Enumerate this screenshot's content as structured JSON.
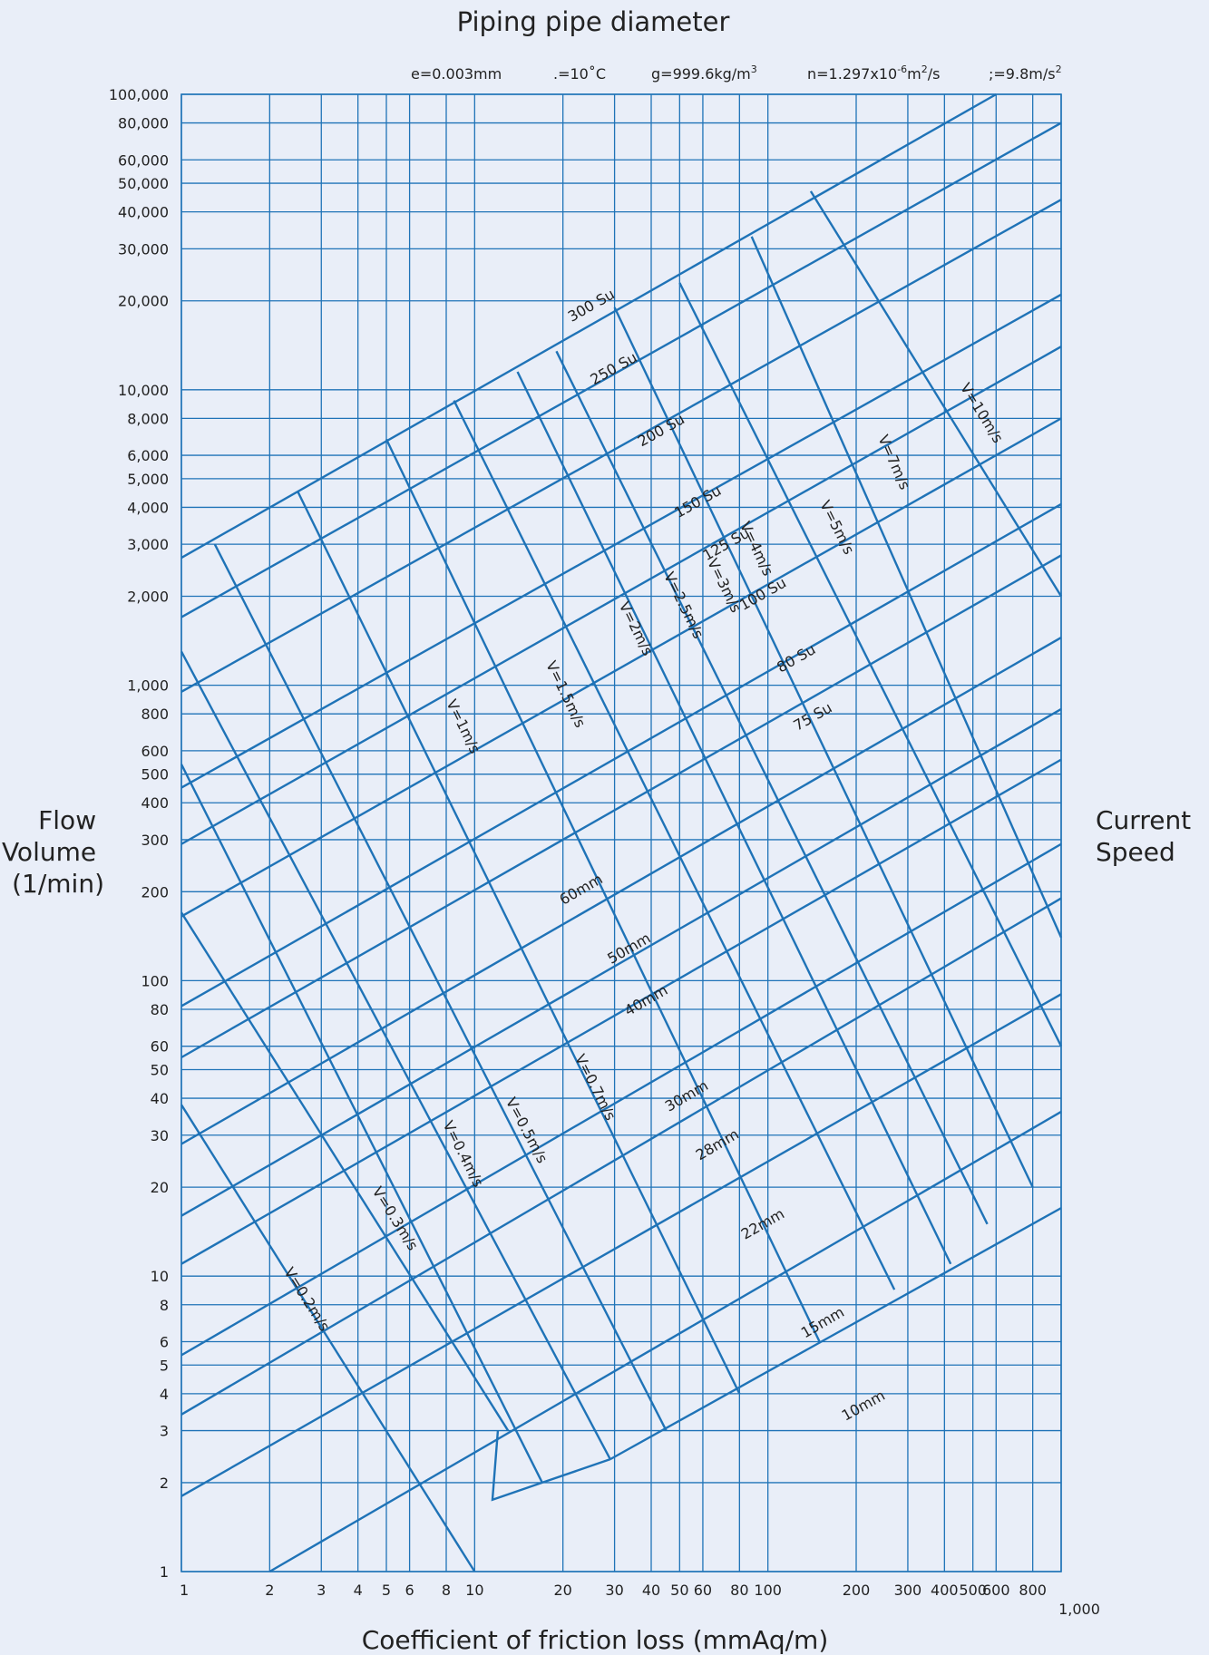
{
  "chart_data": {
    "type": "line",
    "title": "Piping pipe diameter",
    "xlabel": "Coefficient of friction loss (mmAq/m)",
    "ylabel": "Flow Volume (1/min)",
    "right_label": "Current Speed",
    "x_scale": "log",
    "y_scale": "log",
    "xlim": [
      1,
      1000
    ],
    "ylim": [
      1,
      100000
    ],
    "grid": true,
    "conditions": [
      {
        "key": "e",
        "text": "e=0.003mm"
      },
      {
        "key": "t",
        "text": ".=10˚C"
      },
      {
        "key": "g",
        "text": "g=999.6kg/m",
        "sup": "3"
      },
      {
        "key": "n",
        "text": "n=1.297x10",
        "sup": "-6",
        "text2": "m",
        "sup2": "2",
        "text3": "/s"
      },
      {
        "key": "acc",
        "text": ";=9.8m/s",
        "sup": "2"
      }
    ],
    "x_ticks": [
      {
        "v": 1,
        "label": "1"
      },
      {
        "v": 2,
        "label": "2"
      },
      {
        "v": 3,
        "label": "3"
      },
      {
        "v": 4,
        "label": "4"
      },
      {
        "v": 5,
        "label": "5"
      },
      {
        "v": 6,
        "label": "6"
      },
      {
        "v": 8,
        "label": "8"
      },
      {
        "v": 10,
        "label": "10"
      },
      {
        "v": 20,
        "label": "20"
      },
      {
        "v": 30,
        "label": "30"
      },
      {
        "v": 40,
        "label": "40"
      },
      {
        "v": 50,
        "label": "50"
      },
      {
        "v": 60,
        "label": "60"
      },
      {
        "v": 80,
        "label": "80"
      },
      {
        "v": 100,
        "label": "100"
      },
      {
        "v": 200,
        "label": "200"
      },
      {
        "v": 300,
        "label": "300"
      },
      {
        "v": 400,
        "label": "400"
      },
      {
        "v": 500,
        "label": "500"
      },
      {
        "v": 600,
        "label": "600"
      },
      {
        "v": 800,
        "label": "800"
      },
      {
        "v": 1000,
        "label": "1,000"
      }
    ],
    "y_ticks": [
      {
        "v": 1,
        "label": "1"
      },
      {
        "v": 2,
        "label": "2"
      },
      {
        "v": 3,
        "label": "3"
      },
      {
        "v": 4,
        "label": "4"
      },
      {
        "v": 5,
        "label": "5"
      },
      {
        "v": 6,
        "label": "6"
      },
      {
        "v": 8,
        "label": "8"
      },
      {
        "v": 10,
        "label": "10"
      },
      {
        "v": 20,
        "label": "20"
      },
      {
        "v": 30,
        "label": "30"
      },
      {
        "v": 40,
        "label": "40"
      },
      {
        "v": 50,
        "label": "50"
      },
      {
        "v": 60,
        "label": "60"
      },
      {
        "v": 80,
        "label": "80"
      },
      {
        "v": 100,
        "label": "100"
      },
      {
        "v": 200,
        "label": "200"
      },
      {
        "v": 300,
        "label": "300"
      },
      {
        "v": 400,
        "label": "400"
      },
      {
        "v": 500,
        "label": "500"
      },
      {
        "v": 600,
        "label": "600"
      },
      {
        "v": 800,
        "label": "800"
      },
      {
        "v": 1000,
        "label": "1,000"
      },
      {
        "v": 2000,
        "label": "2,000"
      },
      {
        "v": 3000,
        "label": "3,000"
      },
      {
        "v": 4000,
        "label": "4,000"
      },
      {
        "v": 5000,
        "label": "5,000"
      },
      {
        "v": 6000,
        "label": "6,000"
      },
      {
        "v": 8000,
        "label": "8,000"
      },
      {
        "v": 10000,
        "label": "10,000"
      },
      {
        "v": 20000,
        "label": "20,000"
      },
      {
        "v": 30000,
        "label": "30,000"
      },
      {
        "v": 40000,
        "label": "40,000"
      },
      {
        "v": 50000,
        "label": "50,000"
      },
      {
        "v": 60000,
        "label": "60,000"
      },
      {
        "v": 80000,
        "label": "80,000"
      },
      {
        "v": 100000,
        "label": "100,000"
      }
    ],
    "diameter_lines": [
      {
        "name": "300 Su",
        "x_start": 1,
        "y_start": 2700,
        "x_end": 600,
        "y_end": 100000,
        "label_x": 26,
        "label_y": 18000
      },
      {
        "name": "250 Su",
        "x_start": 1,
        "y_start": 1700,
        "x_end": 1000,
        "y_end": 80000,
        "label_x": 31,
        "label_y": 11000
      },
      {
        "name": "200 Su",
        "x_start": 1,
        "y_start": 950,
        "x_end": 1000,
        "y_end": 44000,
        "label_x": 45,
        "label_y": 6800
      },
      {
        "name": "150 Su",
        "x_start": 1,
        "y_start": 450,
        "x_end": 1000,
        "y_end": 21000,
        "label_x": 60,
        "label_y": 3900
      },
      {
        "name": "125 Su",
        "x_start": 1,
        "y_start": 290,
        "x_end": 1000,
        "y_end": 14000,
        "label_x": 75,
        "label_y": 2800
      },
      {
        "name": "100 Su",
        "x_start": 1,
        "y_start": 165,
        "x_end": 1000,
        "y_end": 8000,
        "label_x": 100,
        "label_y": 1900
      },
      {
        "name": "80 Su",
        "x_start": 1,
        "y_start": 82,
        "x_end": 1000,
        "y_end": 4100,
        "label_x": 130,
        "label_y": 1150
      },
      {
        "name": "75 Su",
        "x_start": 1,
        "y_start": 55,
        "x_end": 1000,
        "y_end": 2750,
        "label_x": 148,
        "label_y": 730
      },
      {
        "name": "60mm",
        "x_start": 1,
        "y_start": 28,
        "x_end": 1000,
        "y_end": 1450,
        "label_x": 24,
        "label_y": 190
      },
      {
        "name": "50mm",
        "x_start": 1,
        "y_start": 16,
        "x_end": 1000,
        "y_end": 830,
        "label_x": 35,
        "label_y": 120
      },
      {
        "name": "40mm",
        "x_start": 1,
        "y_start": 11,
        "x_end": 1000,
        "y_end": 560,
        "label_x": 40,
        "label_y": 80
      },
      {
        "name": "30mm",
        "x_start": 1,
        "y_start": 5.4,
        "x_end": 1000,
        "y_end": 290,
        "label_x": 55,
        "label_y": 38
      },
      {
        "name": "28mm",
        "x_start": 1,
        "y_start": 3.4,
        "x_end": 1000,
        "y_end": 190,
        "label_x": 70,
        "label_y": 26
      },
      {
        "name": "22mm",
        "x_start": 1,
        "y_start": 1.8,
        "x_end": 1000,
        "y_end": 90,
        "label_x": 100,
        "label_y": 14
      },
      {
        "name": "15mm",
        "x_start": 2,
        "y_start": 1,
        "x_end": 1000,
        "y_end": 36,
        "label_x": 160,
        "label_y": 6.5
      },
      {
        "name": "10mm",
        "x_start": 29,
        "y_start": 2.4,
        "x_end": 1000,
        "y_end": 17,
        "label_x": 220,
        "label_y": 3.4
      }
    ],
    "velocity_lines": [
      {
        "name": "V=0.2m/s",
        "x_start": 1,
        "y_start": 38,
        "x_end": 10,
        "y_end": 1,
        "label_x": 2.5,
        "label_y": 8
      },
      {
        "name": "V=0.3m/s",
        "x_start": 1,
        "y_start": 170,
        "x_end": 13,
        "y_end": 3,
        "label_x": 5,
        "label_y": 15
      },
      {
        "name": "V=0.4m/s",
        "x_start": 1,
        "y_start": 540,
        "x_end": 17,
        "y_end": 2,
        "label_x": 8.5,
        "label_y": 25
      },
      {
        "name": "V=0.5m/s",
        "x_start": 1,
        "y_start": 1300,
        "x_end": 29,
        "y_end": 2.4,
        "label_x": 14,
        "label_y": 30
      },
      {
        "name": "V=0.7m/s",
        "x_start": 1.3,
        "y_start": 3000,
        "x_end": 45,
        "y_end": 3,
        "label_x": 24,
        "label_y": 42
      },
      {
        "name": "V=1m/s",
        "x_start": 2.5,
        "y_start": 4500,
        "x_end": 80,
        "y_end": 4,
        "label_x": 8.5,
        "label_y": 700
      },
      {
        "name": "V=1.5m/s",
        "x_start": 5,
        "y_start": 6800,
        "x_end": 150,
        "y_end": 6,
        "label_x": 19,
        "label_y": 900
      },
      {
        "name": "V=2m/s",
        "x_start": 8.5,
        "y_start": 9200,
        "x_end": 270,
        "y_end": 9,
        "label_x": 33,
        "label_y": 1500
      },
      {
        "name": "V=2.5m/s",
        "x_start": 14,
        "y_start": 11500,
        "x_end": 420,
        "y_end": 11,
        "label_x": 48,
        "label_y": 1800
      },
      {
        "name": "V=3m/s",
        "x_start": 19,
        "y_start": 13500,
        "x_end": 560,
        "y_end": 15,
        "label_x": 66,
        "label_y": 2100
      },
      {
        "name": "V=4m/s",
        "x_start": 30,
        "y_start": 19000,
        "x_end": 800,
        "y_end": 20,
        "label_x": 85,
        "label_y": 2800
      },
      {
        "name": "V=5m/s",
        "x_start": 50,
        "y_start": 23000,
        "x_end": 1000,
        "y_end": 60,
        "label_x": 160,
        "label_y": 3300
      },
      {
        "name": "V=7m/s",
        "x_start": 88,
        "y_start": 33000,
        "x_end": 1000,
        "y_end": 140,
        "label_x": 250,
        "label_y": 5500
      },
      {
        "name": "V=10m/s",
        "x_start": 140,
        "y_start": 47000,
        "x_end": 1000,
        "y_end": 2000,
        "label_x": 500,
        "label_y": 8000
      }
    ],
    "hook_lines": [
      {
        "x": [
          12,
          11.5,
          17
        ],
        "y": [
          3,
          1.75,
          2
        ]
      },
      {
        "x": [
          17,
          29
        ],
        "y": [
          2,
          2.4
        ]
      }
    ]
  }
}
